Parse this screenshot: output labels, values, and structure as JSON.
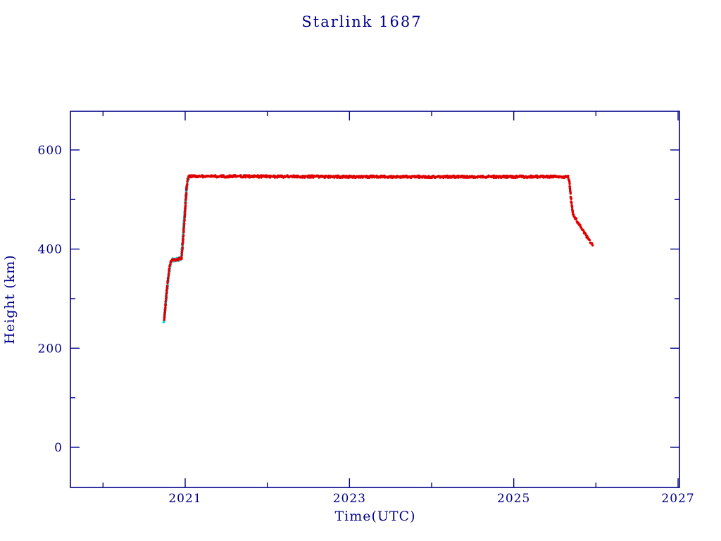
{
  "chart_data": {
    "type": "scatter",
    "title": "Starlink 1687",
    "xlabel": "Time(UTC)",
    "ylabel": "Height (km)",
    "xlim": [
      2019.603,
      2027.017
    ],
    "ylim": [
      -81,
      678
    ],
    "grid": false,
    "legend": "none",
    "axis_color": "#00008b",
    "x_ticks": [
      {
        "value": 2021,
        "label": "2021"
      },
      {
        "value": 2023,
        "label": "2023"
      },
      {
        "value": 2025,
        "label": "2025"
      },
      {
        "value": 2027,
        "label": "2027"
      }
    ],
    "y_ticks": [
      {
        "value": 0,
        "label": "0"
      },
      {
        "value": 200,
        "label": "200"
      },
      {
        "value": 400,
        "label": "400"
      },
      {
        "value": 600,
        "label": "600"
      }
    ],
    "x_minor_step": 1,
    "y_minor_step": 100,
    "series": [
      {
        "name": "height-history-secondary",
        "color": "#00dde8",
        "marker_radius": 1.9,
        "jitter_t": 0.006,
        "jitter_h": 6,
        "points": [
          [
            2020.74,
            255
          ],
          [
            2020.76,
            285
          ],
          [
            2020.78,
            318
          ],
          [
            2020.8,
            348
          ],
          [
            2020.82,
            368
          ],
          [
            2020.84,
            378
          ],
          [
            2020.95,
            380
          ],
          [
            2020.97,
            415
          ],
          [
            2020.99,
            465
          ],
          [
            2021.01,
            510
          ],
          [
            2021.03,
            540
          ],
          [
            2021.06,
            547
          ]
        ]
      },
      {
        "name": "height-history",
        "color": "#e00000",
        "marker_radius": 1.7,
        "jitter_t": 0.004,
        "jitter_h": 4.5,
        "points": [
          [
            2020.745,
            258
          ],
          [
            2020.755,
            278
          ],
          [
            2020.775,
            315
          ],
          [
            2020.795,
            345
          ],
          [
            2020.815,
            368
          ],
          [
            2020.83,
            377
          ],
          [
            2020.9,
            379
          ],
          [
            2020.955,
            381
          ],
          [
            2020.975,
            420
          ],
          [
            2021.0,
            480
          ],
          [
            2021.02,
            530
          ],
          [
            2021.04,
            545
          ],
          [
            2021.055,
            547
          ],
          [
            2023.0,
            546
          ],
          [
            2025.66,
            546
          ],
          [
            2025.675,
            538
          ],
          [
            2025.695,
            505
          ],
          [
            2025.72,
            472
          ],
          [
            2025.75,
            462
          ],
          [
            2025.8,
            448
          ],
          [
            2025.87,
            430
          ],
          [
            2025.93,
            415
          ],
          [
            2025.96,
            409
          ]
        ]
      }
    ]
  }
}
